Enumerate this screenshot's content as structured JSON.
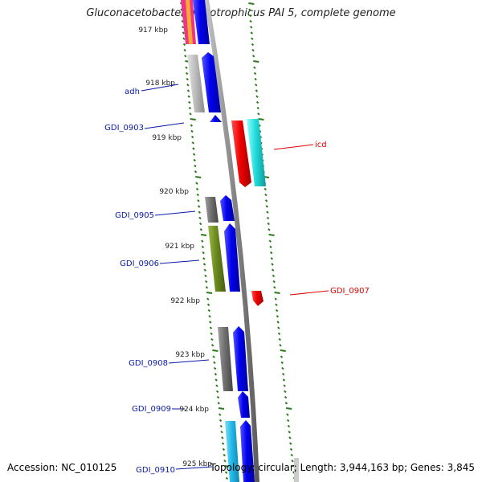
{
  "title": "Gluconacetobacter diazotrophicus PAI 5, complete genome",
  "accession_text": "Accession: NC_010125",
  "topology_text": "Topology: circular; Length: 3,944,163 bp; Genes: 3,845",
  "kbp_labels": [
    "917 kbp",
    "918 kbp",
    "919 kbp",
    "920 kbp",
    "921 kbp",
    "922 kbp",
    "923 kbp",
    "924 kbp",
    "925 kbp"
  ],
  "gene_labels": [
    "adh",
    "GDI_0903",
    "icd",
    "GDI_0905",
    "GDI_0906",
    "GDI_0907",
    "GDI_0908",
    "GDI_0909",
    "GDI_0910"
  ],
  "colors": {
    "blue_label": "#0a1aa8",
    "red_label": "#e00000",
    "backbone": "#8a8a8a",
    "tick_green": "#2a7a1a",
    "cds_blue": "#0000ee",
    "cds_red": "#ee0000",
    "cyan": "#22dddd",
    "olive": "#6b8a1e",
    "gray_light": "#bdbdbd",
    "gray_dark": "#707070",
    "sky": "#22bbee"
  }
}
